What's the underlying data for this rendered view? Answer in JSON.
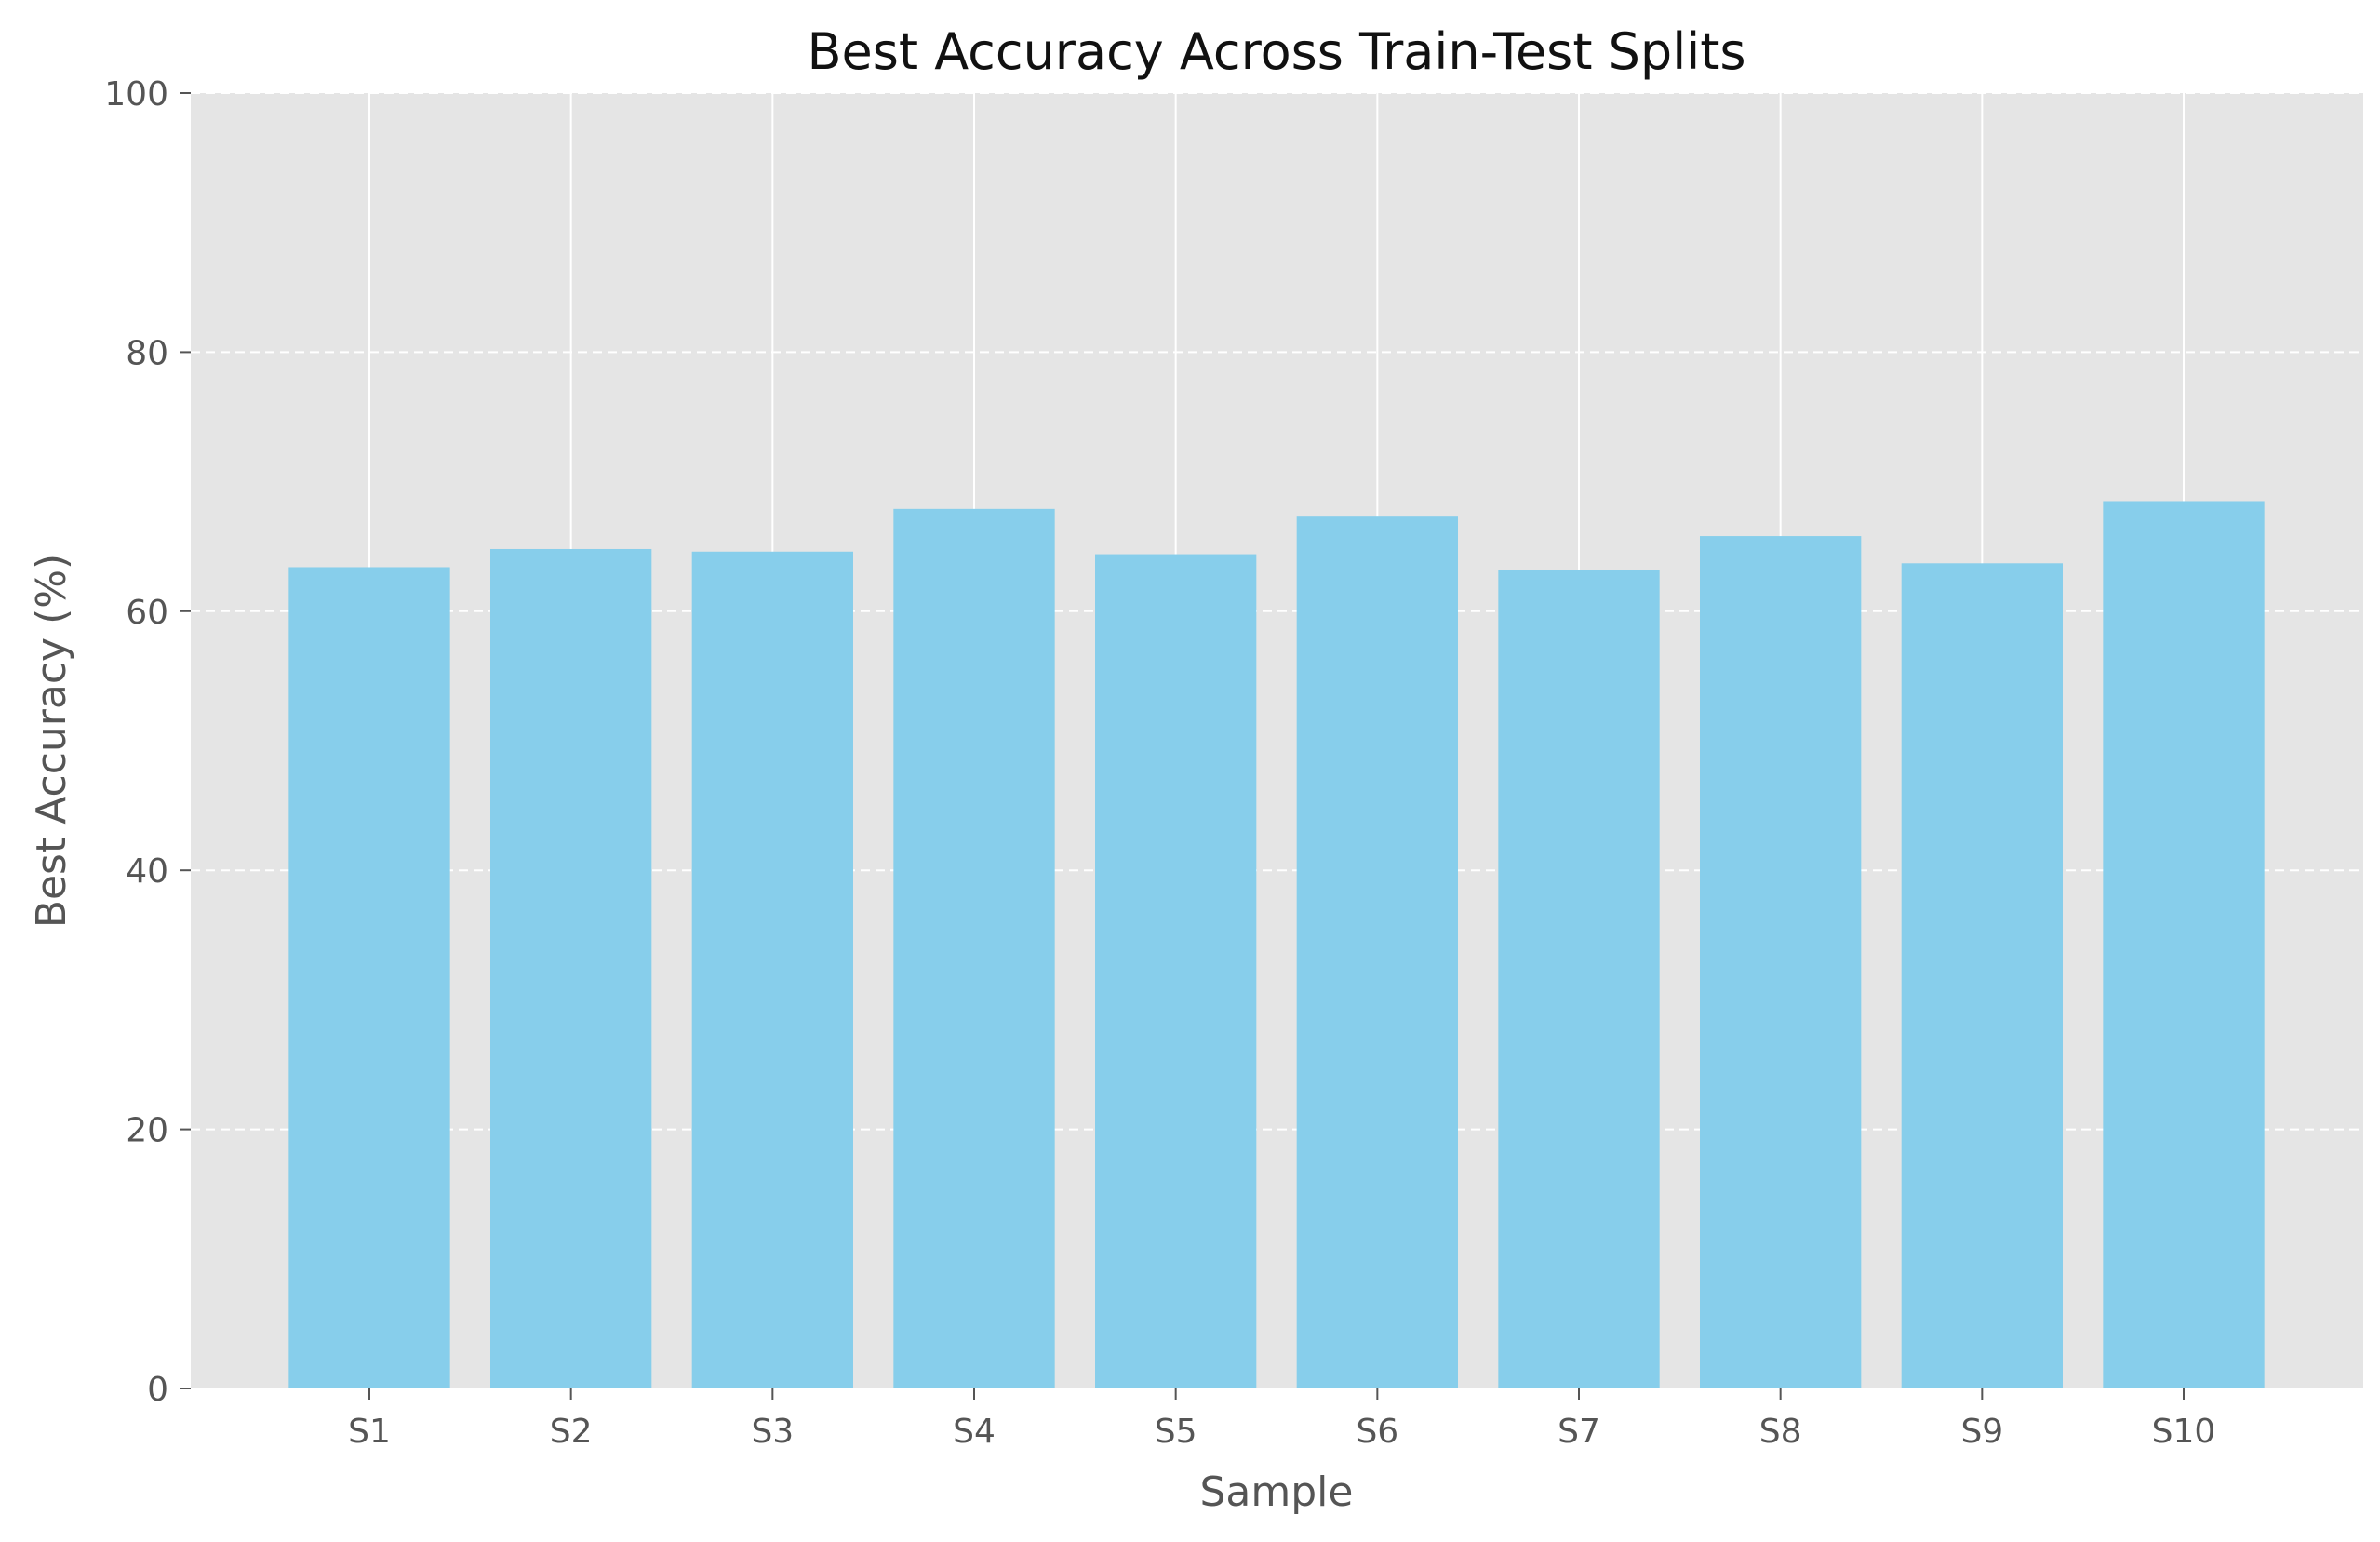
{
  "chart_data": {
    "type": "bar",
    "title": "Best Accuracy Across Train-Test Splits",
    "xlabel": "Sample",
    "ylabel": "Best Accuracy (%)",
    "categories": [
      "S1",
      "S2",
      "S3",
      "S4",
      "S5",
      "S6",
      "S7",
      "S8",
      "S9",
      "S10"
    ],
    "values": [
      63.4,
      64.8,
      64.6,
      67.9,
      64.4,
      67.3,
      63.2,
      65.8,
      63.7,
      68.5
    ],
    "ylim": [
      0,
      100
    ],
    "yticks": [
      0,
      20,
      40,
      60,
      80,
      100
    ],
    "grid": true,
    "legend": "none",
    "colors": {
      "bar": "#87CEEB",
      "plot_background": "#E5E5E5",
      "grid": "#FFFFFF"
    }
  }
}
